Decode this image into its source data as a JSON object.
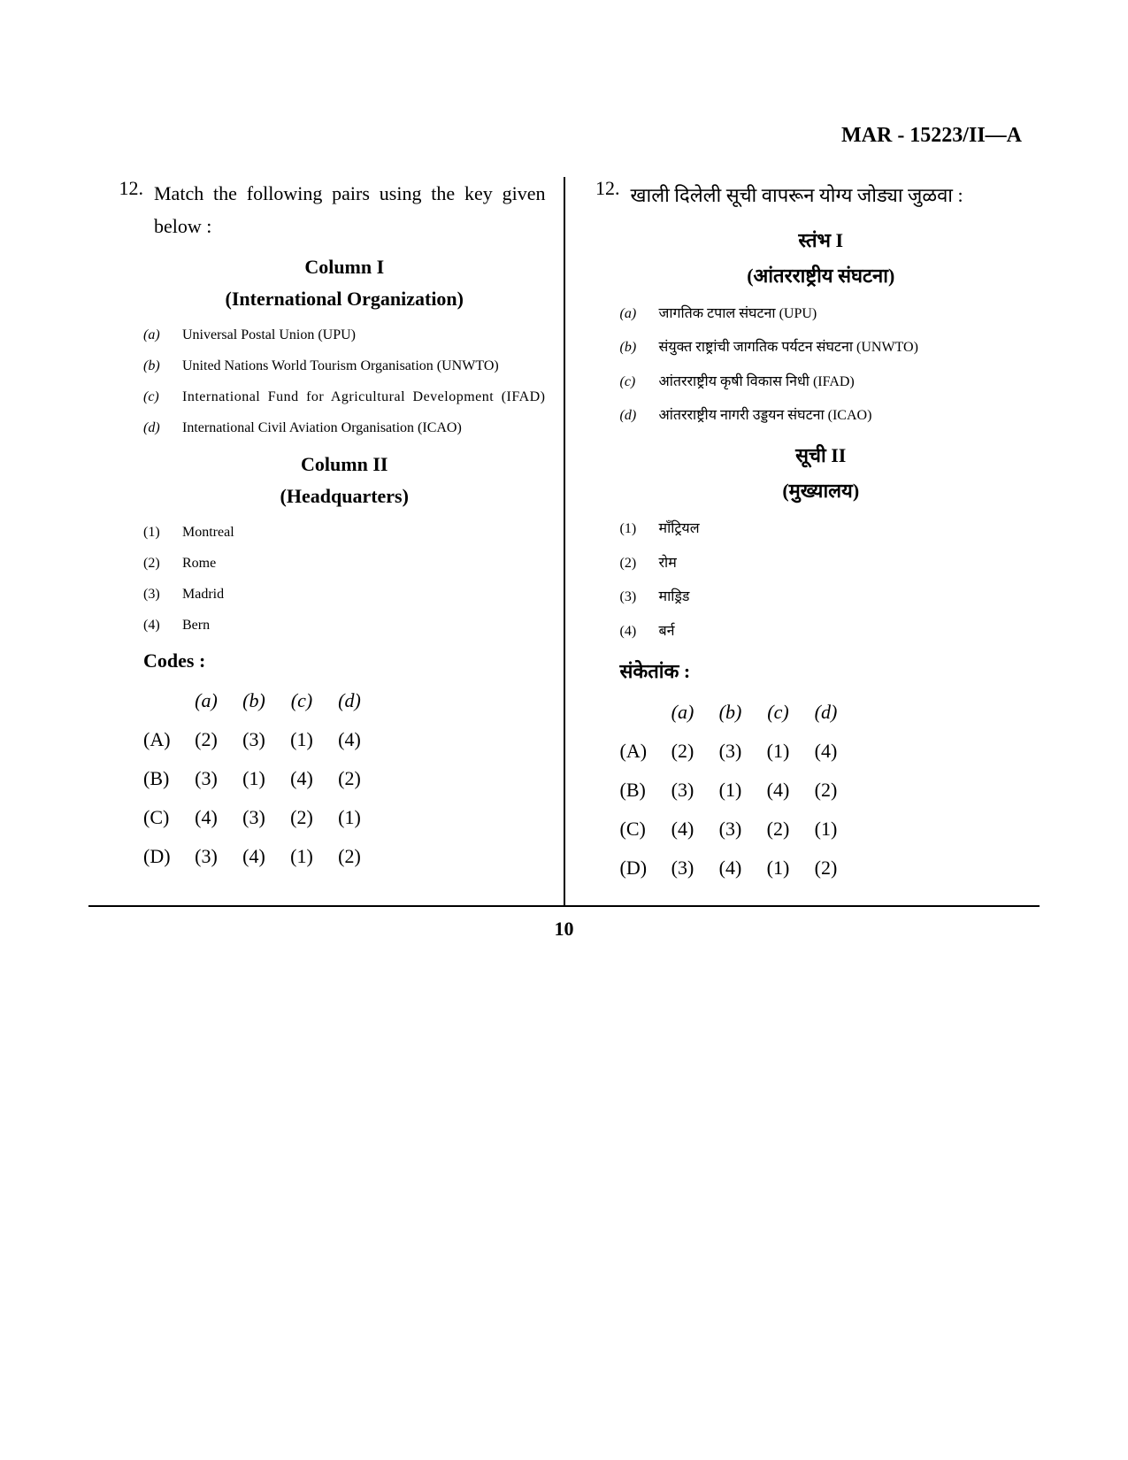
{
  "header_code": "MAR - 15223/II—A",
  "page_number": "10",
  "left": {
    "q_number": "12.",
    "q_text": "Match the following pairs using the key given below :",
    "col1_title": "Column I",
    "col1_subtitle": "(International Organization)",
    "col1_items": [
      {
        "label": "(a)",
        "text": "Universal Postal Union (UPU)"
      },
      {
        "label": "(b)",
        "text": "United Nations World Tourism Organisation (UNWTO)"
      },
      {
        "label": "(c)",
        "text": "International Fund for Agricultural Development (IFAD)"
      },
      {
        "label": "(d)",
        "text": "International Civil Aviation Organisation (ICAO)"
      }
    ],
    "col2_title": "Column II",
    "col2_subtitle": "(Headquarters)",
    "col2_items": [
      {
        "label": "(1)",
        "text": "Montreal"
      },
      {
        "label": "(2)",
        "text": "Rome"
      },
      {
        "label": "(3)",
        "text": "Madrid"
      },
      {
        "label": "(4)",
        "text": "Bern"
      }
    ],
    "codes_label": "Codes :",
    "codes_headers": [
      "(a)",
      "(b)",
      "(c)",
      "(d)"
    ],
    "codes_rows": [
      {
        "label": "(A)",
        "vals": [
          "(2)",
          "(3)",
          "(1)",
          "(4)"
        ]
      },
      {
        "label": "(B)",
        "vals": [
          "(3)",
          "(1)",
          "(4)",
          "(2)"
        ]
      },
      {
        "label": "(C)",
        "vals": [
          "(4)",
          "(3)",
          "(2)",
          "(1)"
        ]
      },
      {
        "label": "(D)",
        "vals": [
          "(3)",
          "(4)",
          "(1)",
          "(2)"
        ]
      }
    ]
  },
  "right": {
    "q_number": "12.",
    "q_text": "खाली दिलेली सूची वापरून योग्य जोड्या जुळवा :",
    "col1_title": "स्तंभ I",
    "col1_subtitle": "(आंतरराष्ट्रीय संघटना)",
    "col1_items": [
      {
        "label": "(a)",
        "text": "जागतिक टपाल संघटना (UPU)"
      },
      {
        "label": "(b)",
        "text": "संयुक्त राष्ट्रांची जागतिक पर्यटन संघटना (UNWTO)"
      },
      {
        "label": "(c)",
        "text": "आंतरराष्ट्रीय कृषी विकास निधी (IFAD)"
      },
      {
        "label": "(d)",
        "text": "आंतरराष्ट्रीय नागरी उड्डयन संघटना (ICAO)"
      }
    ],
    "col2_title": "सूची II",
    "col2_subtitle": "(मुख्यालय)",
    "col2_items": [
      {
        "label": "(1)",
        "text": "माँट्रियल"
      },
      {
        "label": "(2)",
        "text": "रोम"
      },
      {
        "label": "(3)",
        "text": "माड्रिड"
      },
      {
        "label": "(4)",
        "text": "बर्न"
      }
    ],
    "codes_label": "संकेतांक :",
    "codes_headers": [
      "(a)",
      "(b)",
      "(c)",
      "(d)"
    ],
    "codes_rows": [
      {
        "label": "(A)",
        "vals": [
          "(2)",
          "(3)",
          "(1)",
          "(4)"
        ]
      },
      {
        "label": "(B)",
        "vals": [
          "(3)",
          "(1)",
          "(4)",
          "(2)"
        ]
      },
      {
        "label": "(C)",
        "vals": [
          "(4)",
          "(3)",
          "(2)",
          "(1)"
        ]
      },
      {
        "label": "(D)",
        "vals": [
          "(3)",
          "(4)",
          "(1)",
          "(2)"
        ]
      }
    ]
  }
}
